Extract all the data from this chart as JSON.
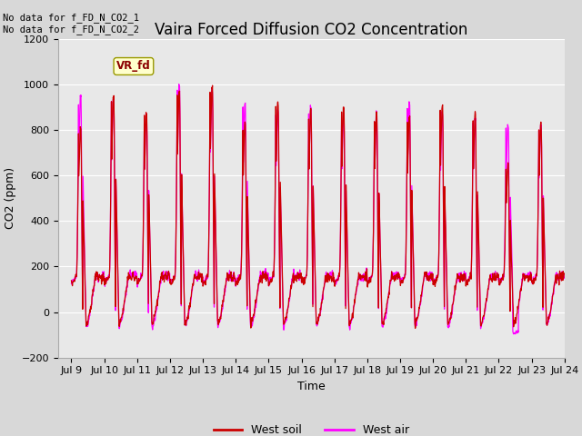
{
  "title": "Vaira Forced Diffusion CO2 Concentration",
  "xlabel": "Time",
  "ylabel": "CO2 (ppm)",
  "ylim": [
    -200,
    1200
  ],
  "yticks": [
    -200,
    0,
    200,
    400,
    600,
    800,
    1000,
    1200
  ],
  "xtick_labels": [
    "Jul 9",
    "Jul 10",
    "Jul 11",
    "Jul 12",
    "Jul 13",
    "Jul 14",
    "Jul 15",
    "Jul 16",
    "Jul 17",
    "Jul 18",
    "Jul 19",
    "Jul 20",
    "Jul 21",
    "Jul 22",
    "Jul 23",
    "Jul 24"
  ],
  "west_soil_color": "#cc0000",
  "west_air_color": "#ff00ff",
  "annotation_text": "No data for f_FD_N_CO2_1\nNo data for f_FD_N_CO2_2",
  "vr_fd_label": "VR_fd",
  "plot_bg_color": "#e8e8e8",
  "fig_bg_color": "#d8d8d8",
  "legend_labels": [
    "West soil",
    "West air"
  ],
  "title_fontsize": 12,
  "axis_fontsize": 9,
  "tick_fontsize": 8,
  "soil_peaks": [
    810,
    950,
    875,
    970,
    990,
    830,
    920,
    890,
    900,
    870,
    860,
    910,
    870,
    650,
    830
  ],
  "air_peaks": [
    950,
    940,
    860,
    1000,
    975,
    920,
    895,
    900,
    870,
    865,
    920,
    870,
    855,
    830,
    830
  ],
  "n_days": 15,
  "points_per_day": 96
}
